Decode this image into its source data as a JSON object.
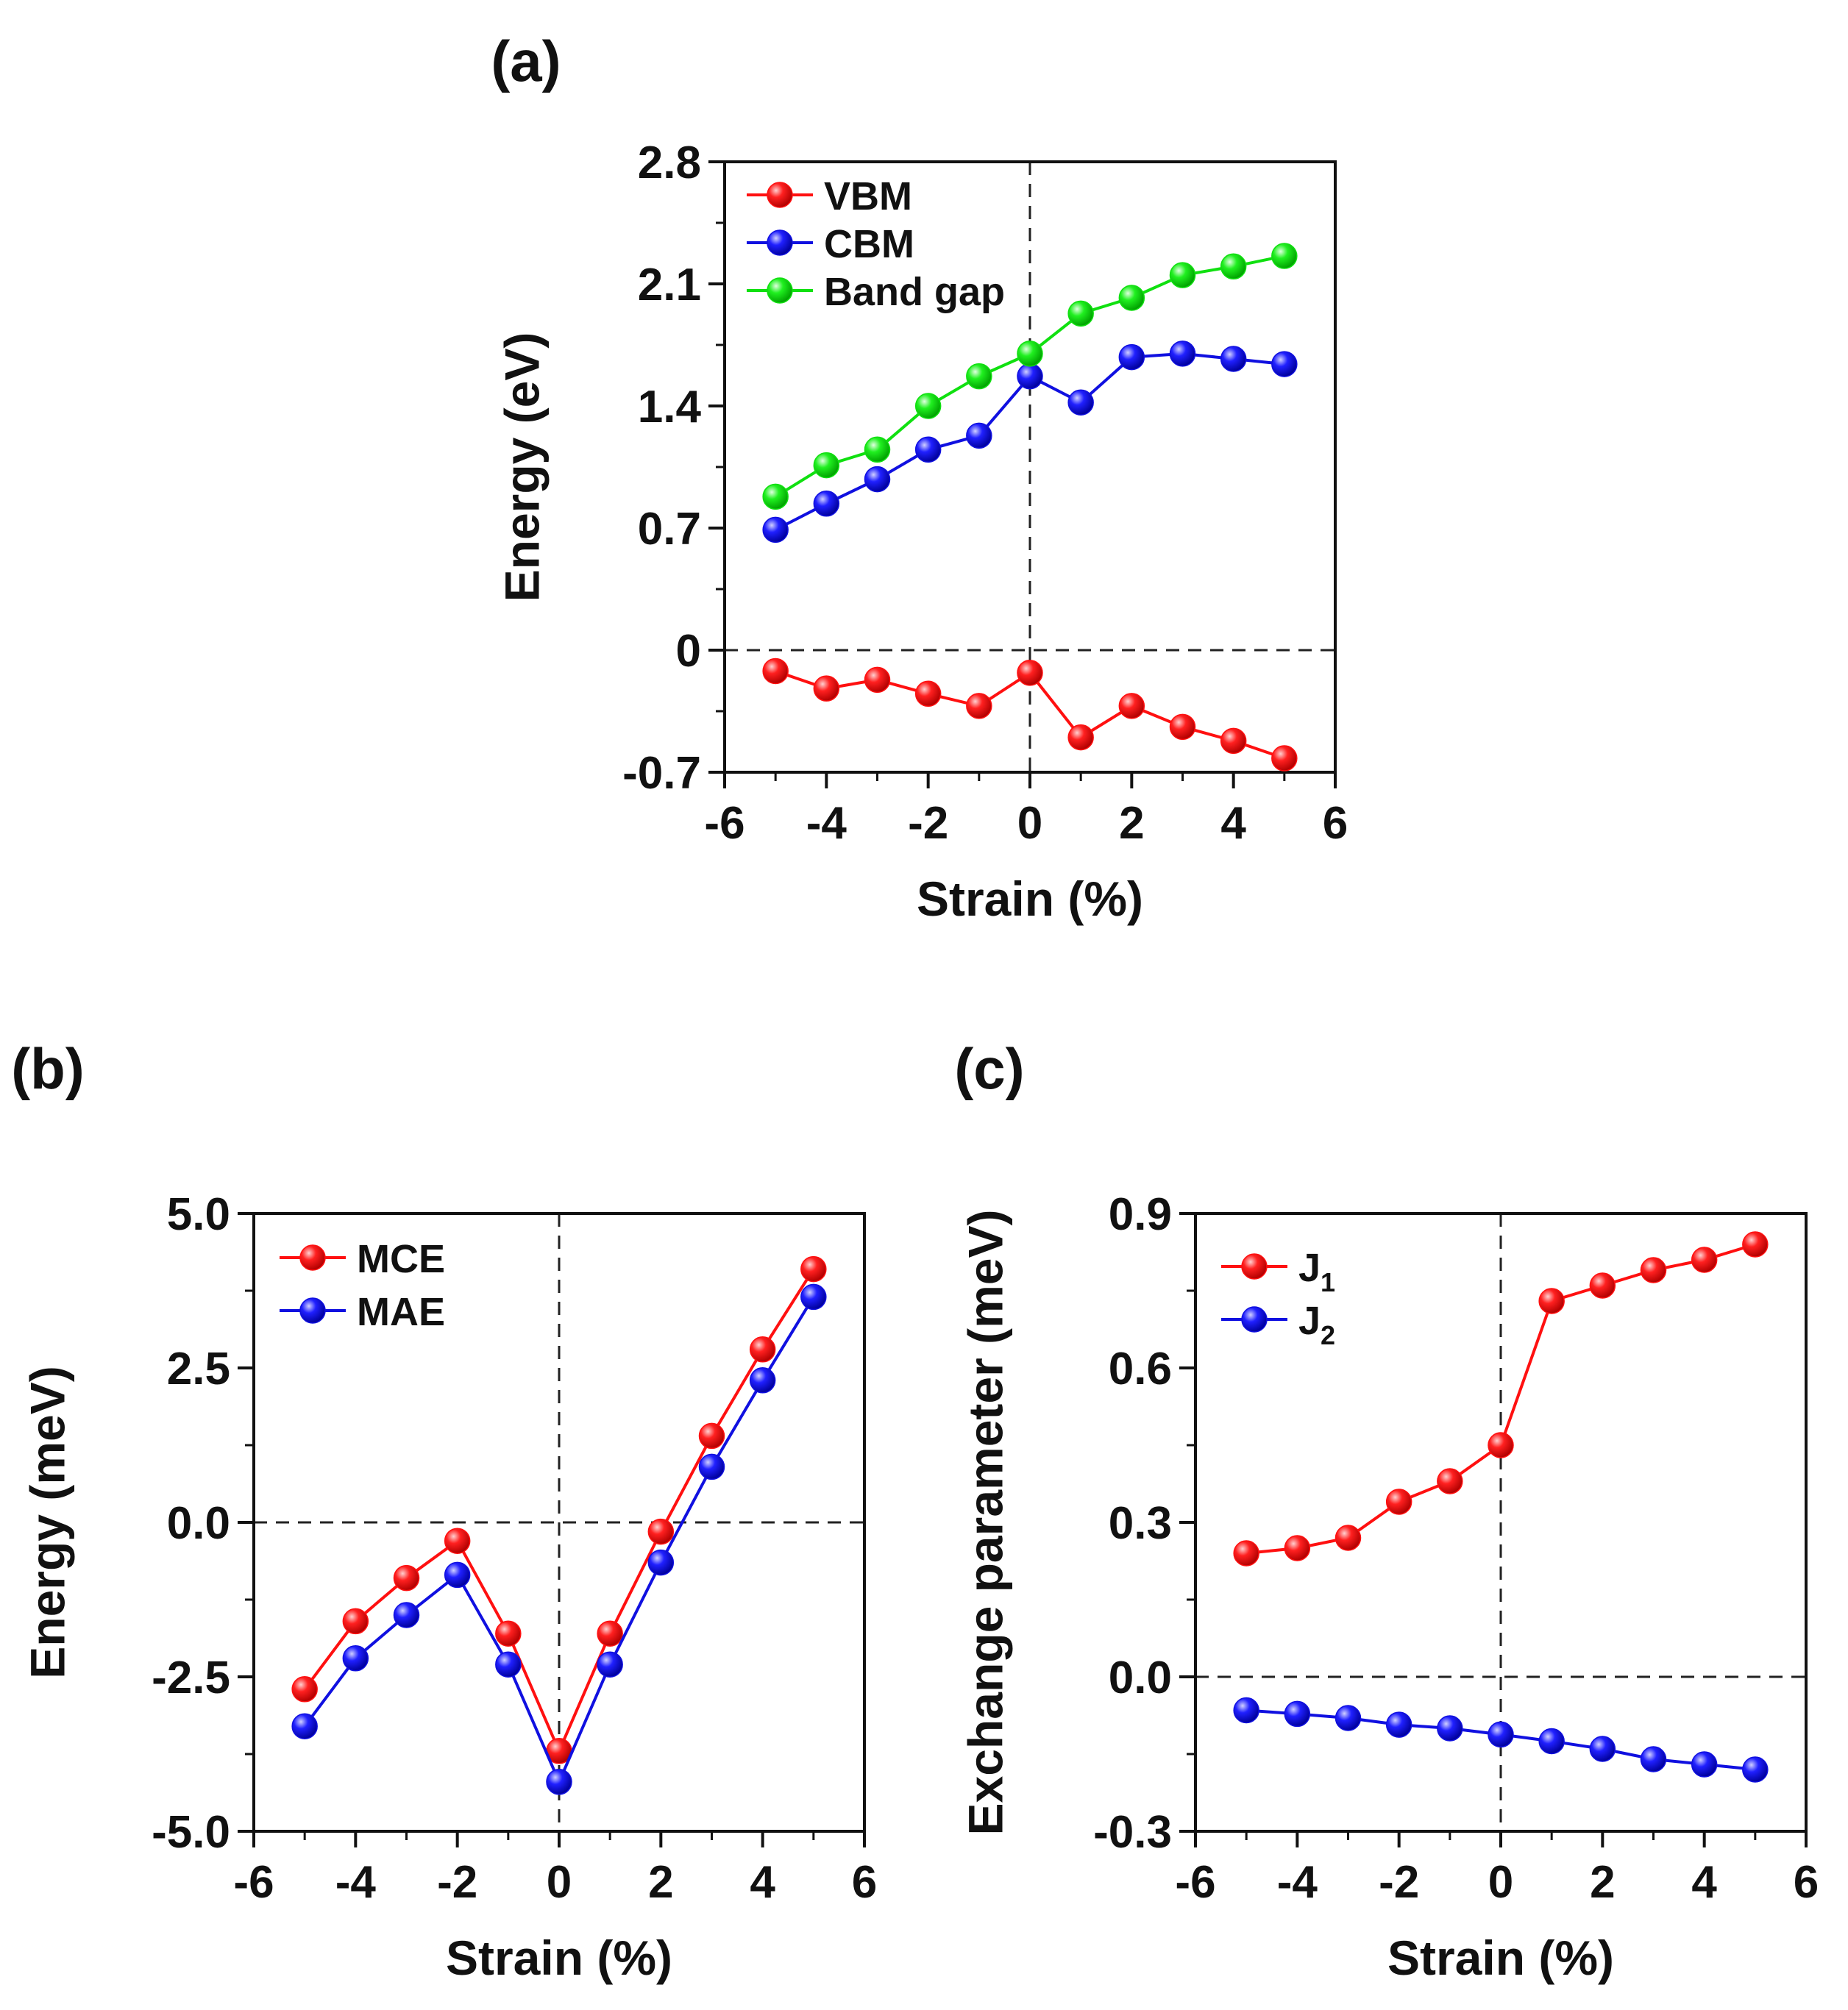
{
  "chart_data": [
    {
      "id": "a",
      "panel_label": "(a)",
      "type": "line",
      "xlabel": "Strain (%)",
      "ylabel": "Energy (eV)",
      "xlim": [
        -6,
        6
      ],
      "ylim": [
        -0.7,
        2.8
      ],
      "xticks": [
        -6,
        -4,
        -2,
        0,
        2,
        4,
        6
      ],
      "xtick_labels": [
        "-6",
        "-4",
        "-2",
        "0",
        "2",
        "4",
        "6"
      ],
      "yticks": [
        -0.7,
        0,
        0.7,
        1.4,
        2.1,
        2.8
      ],
      "ytick_labels": [
        "-0.7",
        "0",
        "0.7",
        "1.4",
        "2.1",
        "2.8"
      ],
      "x": [
        -5,
        -4,
        -3,
        -2,
        -1,
        0,
        1,
        2,
        3,
        4,
        5
      ],
      "legend_position": "top-left",
      "series": [
        {
          "name": "VBM",
          "color": "#ff1010",
          "values": [
            -0.12,
            -0.22,
            -0.17,
            -0.25,
            -0.32,
            -0.13,
            -0.5,
            -0.32,
            -0.44,
            -0.52,
            -0.62
          ]
        },
        {
          "name": "CBM",
          "color": "#1010e0",
          "values": [
            0.69,
            0.84,
            0.98,
            1.15,
            1.23,
            1.57,
            1.42,
            1.68,
            1.7,
            1.67,
            1.64
          ]
        },
        {
          "name": "Band gap",
          "color": "#10e010",
          "values": [
            0.88,
            1.06,
            1.15,
            1.4,
            1.57,
            1.7,
            1.93,
            2.02,
            2.15,
            2.2,
            2.26
          ]
        }
      ]
    },
    {
      "id": "b",
      "panel_label": "(b)",
      "type": "line",
      "xlabel": "Strain (%)",
      "ylabel": "Energy (meV)",
      "xlim": [
        -6,
        6
      ],
      "ylim": [
        -5.0,
        5.0
      ],
      "xticks": [
        -6,
        -4,
        -2,
        0,
        2,
        4,
        6
      ],
      "xtick_labels": [
        "-6",
        "-4",
        "-2",
        "0",
        "2",
        "4",
        "6"
      ],
      "yticks": [
        -5.0,
        -2.5,
        0.0,
        2.5,
        5.0
      ],
      "ytick_labels": [
        "-5.0",
        "-2.5",
        "0.0",
        "2.5",
        "5.0"
      ],
      "x": [
        -5,
        -4,
        -3,
        -2,
        -1,
        0,
        1,
        2,
        3,
        4,
        5
      ],
      "legend_position": "top-left",
      "series": [
        {
          "name": "MCE",
          "color": "#ff1010",
          "values": [
            -2.7,
            -1.6,
            -0.9,
            -0.3,
            -1.8,
            -3.7,
            -1.8,
            -0.15,
            1.4,
            2.8,
            4.1
          ]
        },
        {
          "name": "MAE",
          "color": "#1010e0",
          "values": [
            -3.3,
            -2.2,
            -1.5,
            -0.85,
            -2.3,
            -4.2,
            -2.3,
            -0.65,
            0.9,
            2.3,
            3.65
          ]
        }
      ]
    },
    {
      "id": "c",
      "panel_label": "(c)",
      "type": "line",
      "xlabel": "Strain (%)",
      "ylabel": "Exchange parameter (meV)",
      "xlim": [
        -6,
        6
      ],
      "ylim": [
        -0.3,
        0.9
      ],
      "xticks": [
        -6,
        -4,
        -2,
        0,
        2,
        4,
        6
      ],
      "xtick_labels": [
        "-6",
        "-4",
        "-2",
        "0",
        "2",
        "4",
        "6"
      ],
      "yticks": [
        -0.3,
        0.0,
        0.3,
        0.6,
        0.9
      ],
      "ytick_labels": [
        "-0.3",
        "0.0",
        "0.3",
        "0.6",
        "0.9"
      ],
      "x": [
        -5,
        -4,
        -3,
        -2,
        -1,
        0,
        1,
        2,
        3,
        4,
        5
      ],
      "legend_position": "top-left",
      "series": [
        {
          "name": "J",
          "subscript": "1",
          "color": "#ff1010",
          "values": [
            0.24,
            0.25,
            0.27,
            0.34,
            0.38,
            0.45,
            0.73,
            0.76,
            0.79,
            0.81,
            0.84
          ]
        },
        {
          "name": "J",
          "subscript": "2",
          "color": "#1010e0",
          "values": [
            -0.065,
            -0.072,
            -0.08,
            -0.093,
            -0.1,
            -0.112,
            -0.125,
            -0.14,
            -0.16,
            -0.17,
            -0.18
          ]
        }
      ]
    }
  ]
}
